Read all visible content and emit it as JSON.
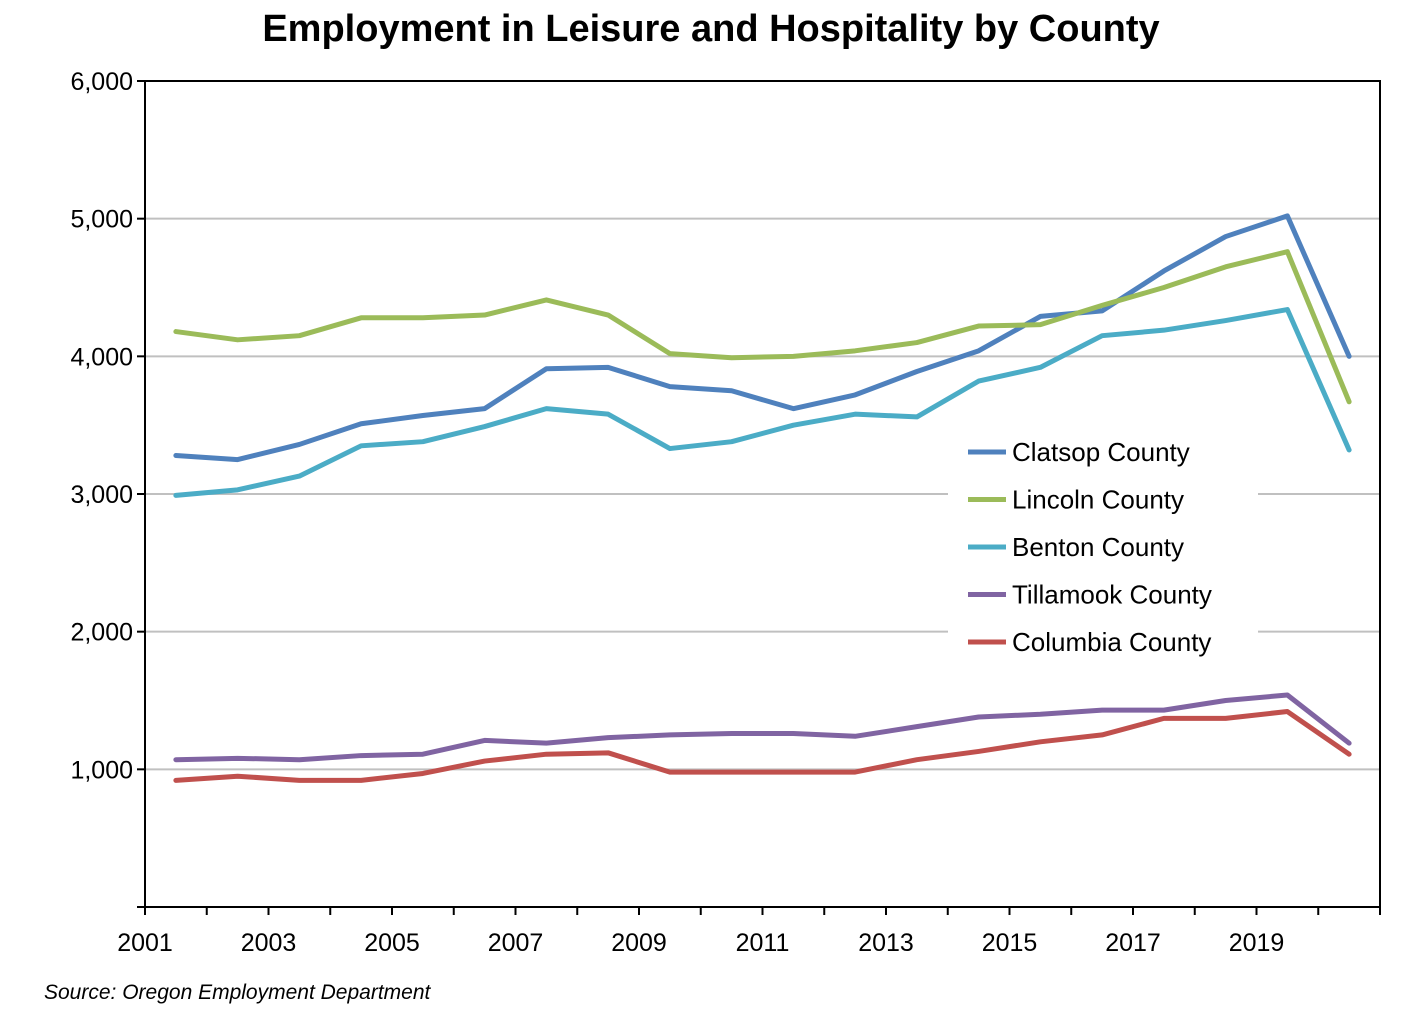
{
  "chart_data": {
    "type": "line",
    "title": "Employment in Leisure and Hospitality by County",
    "xlabel": "",
    "ylabel": "",
    "x": [
      2001,
      2002,
      2003,
      2004,
      2005,
      2006,
      2007,
      2008,
      2009,
      2010,
      2011,
      2012,
      2013,
      2014,
      2015,
      2016,
      2017,
      2018,
      2019,
      2020
    ],
    "xtick_labels": [
      "2001",
      "2003",
      "2005",
      "2007",
      "2009",
      "2011",
      "2013",
      "2015",
      "2017",
      "2019"
    ],
    "ylim": [
      0,
      6000
    ],
    "ytick_labels": [
      "6,000",
      "5,000",
      "4,000",
      "3,000",
      "2,000",
      "1,000"
    ],
    "grid": true,
    "legend_position": "center-right",
    "series": [
      {
        "name": "Clatsop County",
        "color": "#4f81bd",
        "values": [
          3280,
          3250,
          3360,
          3510,
          3570,
          3620,
          3910,
          3920,
          3780,
          3750,
          3620,
          3720,
          3890,
          4040,
          4290,
          4330,
          4620,
          4870,
          5020,
          4000
        ]
      },
      {
        "name": "Lincoln County",
        "color": "#9bbb59",
        "values": [
          4180,
          4120,
          4150,
          4280,
          4280,
          4300,
          4410,
          4300,
          4020,
          3990,
          4000,
          4040,
          4100,
          4220,
          4230,
          4370,
          4500,
          4650,
          4760,
          3670
        ]
      },
      {
        "name": "Benton County",
        "color": "#4bacc6",
        "values": [
          2990,
          3030,
          3130,
          3350,
          3380,
          3490,
          3620,
          3580,
          3330,
          3380,
          3500,
          3580,
          3560,
          3820,
          3920,
          4150,
          4190,
          4260,
          4340,
          3320
        ]
      },
      {
        "name": "Tillamook County",
        "color": "#8064a2",
        "values": [
          1070,
          1080,
          1070,
          1100,
          1110,
          1210,
          1190,
          1230,
          1250,
          1260,
          1260,
          1240,
          1310,
          1380,
          1400,
          1430,
          1430,
          1500,
          1540,
          1190
        ]
      },
      {
        "name": "Columbia County",
        "color": "#c0504d",
        "values": [
          920,
          950,
          920,
          920,
          970,
          1060,
          1110,
          1120,
          980,
          980,
          980,
          980,
          1070,
          1130,
          1200,
          1250,
          1370,
          1370,
          1420,
          1110
        ]
      }
    ]
  },
  "source": "Source: Oregon Employment Department"
}
